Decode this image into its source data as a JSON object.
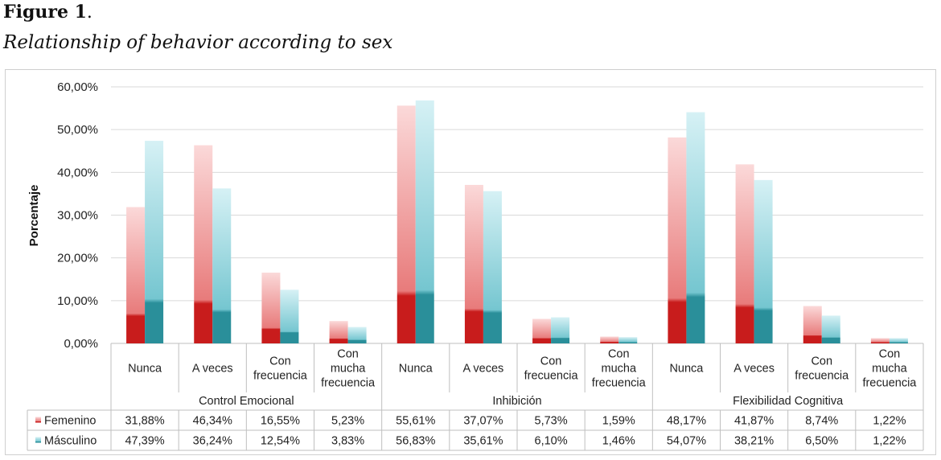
{
  "figure": {
    "label": "Figure 1",
    "label_suffix": ".",
    "title": "Relationship of behavior according to sex"
  },
  "chart_data": {
    "type": "bar",
    "ylabel": "Porcentaje",
    "ylim": [
      0,
      60
    ],
    "yticks": [
      "0,00%",
      "10,00%",
      "20,00%",
      "30,00%",
      "40,00%",
      "50,00%",
      "60,00%"
    ],
    "grid": true,
    "groups": [
      {
        "name": "Control Emocional",
        "categories": [
          [
            "Nunca"
          ],
          [
            "A veces"
          ],
          [
            "Con",
            "frecuencia"
          ],
          [
            "Con",
            "mucha",
            "frecuencia"
          ]
        ]
      },
      {
        "name": "Inhibición",
        "categories": [
          [
            "Nunca"
          ],
          [
            "A veces"
          ],
          [
            "Con",
            "frecuencia"
          ],
          [
            "Con",
            "mucha",
            "frecuencia"
          ]
        ]
      },
      {
        "name": "Flexibilidad Cognitiva",
        "categories": [
          [
            "Nunca"
          ],
          [
            "A veces"
          ],
          [
            "Con",
            "frecuencia"
          ],
          [
            "Con",
            "mucha",
            "frecuencia"
          ]
        ]
      }
    ],
    "series": [
      {
        "name": "Femenino",
        "color": "#c81c1c",
        "values": [
          31.88,
          46.34,
          16.55,
          5.23,
          55.61,
          37.07,
          5.73,
          1.59,
          48.17,
          41.87,
          8.74,
          1.22
        ],
        "labels": [
          "31,88%",
          "46,34%",
          "16,55%",
          "5,23%",
          "55,61%",
          "37,07%",
          "5,73%",
          "1,59%",
          "48,17%",
          "41,87%",
          "8,74%",
          "1,22%"
        ]
      },
      {
        "name": "Másculino",
        "color": "#2a8f9a",
        "values": [
          47.39,
          36.24,
          12.54,
          3.83,
          56.83,
          35.61,
          6.1,
          1.46,
          54.07,
          38.21,
          6.5,
          1.22
        ],
        "labels": [
          "47,39%",
          "36,24%",
          "12,54%",
          "3,83%",
          "56,83%",
          "35,61%",
          "6,10%",
          "1,46%",
          "54,07%",
          "38,21%",
          "6,50%",
          "1,22%"
        ]
      }
    ]
  }
}
